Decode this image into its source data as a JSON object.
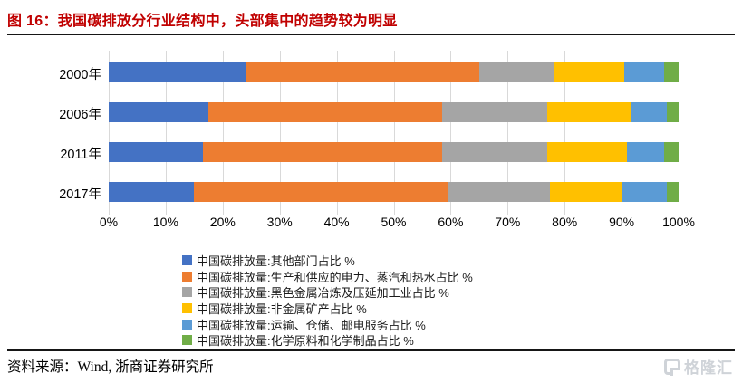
{
  "title": "图 16：我国碳排放分行业结构中，头部集中的趋势较为明显",
  "footer": {
    "source": "资料来源：Wind, 浙商证券研究所"
  },
  "watermark": {
    "text": "格隆汇"
  },
  "colors": {
    "title_red": "#C00000",
    "gridline": "#D9D9D9",
    "rule": "#161616",
    "watermark_gray": "#cfd3d8"
  },
  "chart_data": {
    "type": "bar",
    "variant": "stacked-100-horizontal",
    "categories": [
      "2000年",
      "2006年",
      "2011年",
      "2017年"
    ],
    "series": [
      {
        "name": "中国碳排放量:其他部门占比 %",
        "color": "#4472C4",
        "values": [
          24,
          17.5,
          16.5,
          15
        ]
      },
      {
        "name": "中国碳排放量:生产和供应的电力、蒸汽和热水占比 %",
        "color": "#ED7D31",
        "values": [
          41,
          41,
          42,
          44.5
        ]
      },
      {
        "name": "中国碳排放量:黑色金属冶炼及压延加工业占比 %",
        "color": "#A5A5A5",
        "values": [
          13,
          18.5,
          18.5,
          18
        ]
      },
      {
        "name": "中国碳排放量:非金属矿产占比 %",
        "color": "#FFC000",
        "values": [
          12.5,
          14.5,
          14,
          12.5
        ]
      },
      {
        "name": "中国碳排放量:运输、仓储、邮电服务占比 %",
        "color": "#5B9BD5",
        "values": [
          7,
          6.5,
          6.5,
          8
        ]
      },
      {
        "name": "中国碳排放量:化学原料和化学制品占比 %",
        "color": "#70AD47",
        "values": [
          2.5,
          2,
          2.5,
          2
        ]
      }
    ],
    "x_ticks": [
      "0%",
      "10%",
      "20%",
      "30%",
      "40%",
      "50%",
      "60%",
      "70%",
      "80%",
      "90%",
      "100%"
    ],
    "xlim": [
      0,
      100
    ],
    "grid": true,
    "legend_position": "bottom-left"
  }
}
